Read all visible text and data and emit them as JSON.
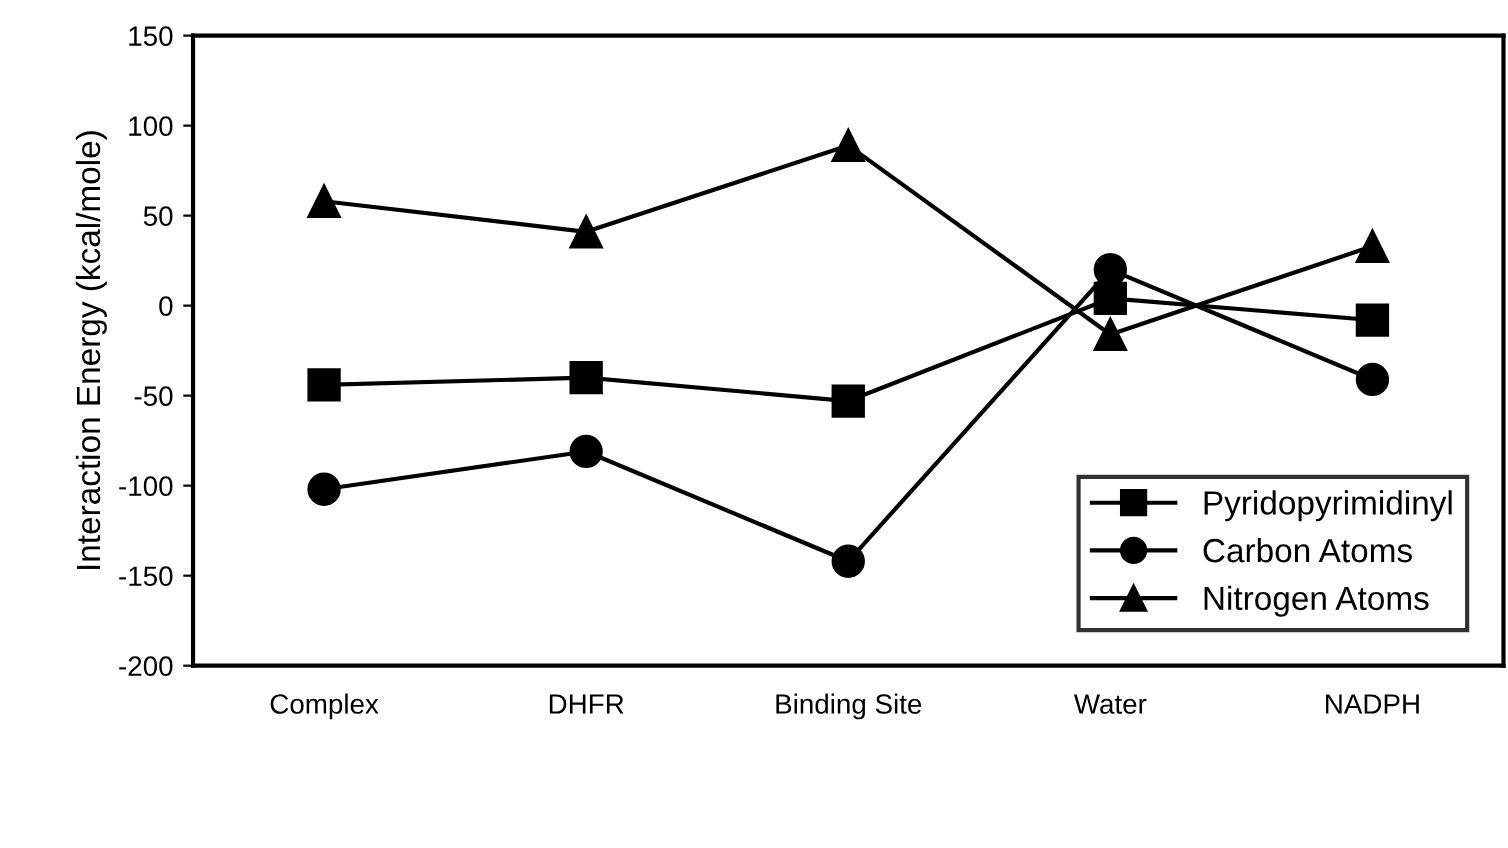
{
  "chart_data": {
    "type": "line",
    "ylabel": "Interaction Energy (kcal/mole)",
    "categories": [
      "Complex",
      "DHFR",
      "Binding Site",
      "Water",
      "NADPH"
    ],
    "series": [
      {
        "name": "Pyridopyrimidinyl",
        "color": "#000000",
        "marker": "square",
        "values": [
          -44,
          -40,
          -53,
          4,
          -8
        ]
      },
      {
        "name": "Carbon Atoms",
        "color": "#000000",
        "marker": "circle",
        "values": [
          -102,
          -81,
          -142,
          20,
          -41
        ]
      },
      {
        "name": "Nitrogen Atoms",
        "color": "#000000",
        "marker": "triangle",
        "values": [
          58,
          41,
          89,
          -16,
          33
        ]
      }
    ],
    "ylim": [
      -200,
      150
    ],
    "yticks": [
      -200,
      -150,
      -100,
      -50,
      0,
      50,
      100,
      150
    ],
    "grid": false,
    "legend": "bottom right",
    "line_style": "solid"
  }
}
